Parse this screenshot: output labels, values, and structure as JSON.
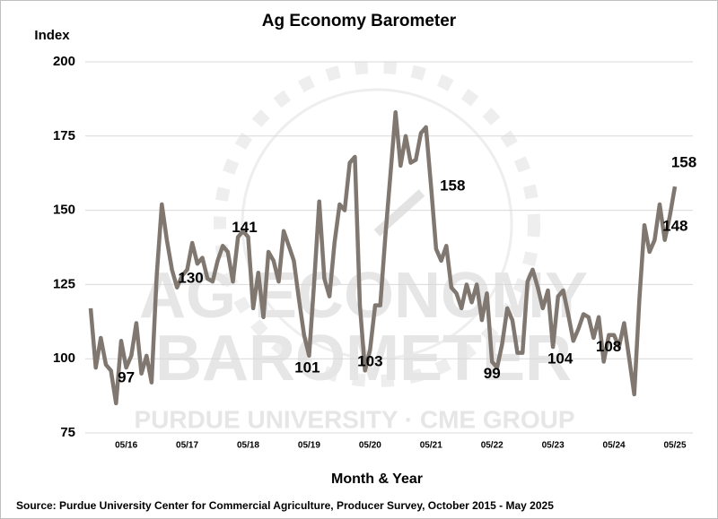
{
  "chart_data": {
    "type": "line",
    "title": "Ag Economy Barometer",
    "y_axis_label": "Index",
    "x_axis_label": "Month & Year",
    "source": "Source: Purdue University Center for Commercial Agriculture, Producer Survey, October 2015 - May 2025",
    "watermark": {
      "line1": "AG ECONOMY",
      "line2": "BAROMETER",
      "line3": "PURDUE UNIVERSITY · CME GROUP"
    },
    "ylim": [
      75,
      200
    ],
    "yticks": [
      75,
      100,
      125,
      150,
      175,
      200
    ],
    "grid": true,
    "categories": [
      null,
      null,
      null,
      null,
      null,
      null,
      null,
      "05/16",
      null,
      null,
      null,
      null,
      null,
      null,
      null,
      null,
      null,
      null,
      null,
      "05/17",
      null,
      null,
      null,
      null,
      null,
      null,
      null,
      null,
      null,
      null,
      null,
      "05/18",
      null,
      null,
      null,
      null,
      null,
      null,
      null,
      null,
      null,
      null,
      null,
      "05/19",
      null,
      null,
      null,
      null,
      null,
      null,
      null,
      null,
      null,
      null,
      null,
      "05/20",
      null,
      null,
      null,
      null,
      null,
      null,
      null,
      null,
      null,
      null,
      null,
      "05/21",
      null,
      null,
      null,
      null,
      null,
      null,
      null,
      null,
      null,
      null,
      null,
      "05/22",
      null,
      null,
      null,
      null,
      null,
      null,
      null,
      null,
      null,
      null,
      null,
      "05/23",
      null,
      null,
      null,
      null,
      null,
      null,
      null,
      null,
      null,
      null,
      null,
      "05/24",
      null,
      null,
      null,
      null,
      null,
      null,
      null,
      null,
      null,
      null,
      null,
      "05/25"
    ],
    "series": [
      {
        "name": "Ag Economy Barometer",
        "color": "#7f7770",
        "values": [
          117,
          97,
          107,
          98,
          96,
          85,
          106,
          97,
          101,
          112,
          95,
          101,
          92,
          128,
          152,
          140,
          130,
          124,
          128,
          130,
          139,
          132,
          134,
          127,
          126,
          133,
          138,
          136,
          126,
          141,
          143,
          141,
          117,
          129,
          114,
          136,
          133,
          126,
          143,
          138,
          133,
          120,
          108,
          101,
          126,
          153,
          127,
          121,
          139,
          152,
          150,
          166,
          168,
          118,
          96,
          103,
          118,
          118,
          141,
          162,
          183,
          165,
          175,
          166,
          167,
          176,
          178,
          158,
          137,
          133,
          138,
          124,
          122,
          117,
          125,
          119,
          125,
          113,
          122,
          99,
          97,
          105,
          117,
          113,
          102,
          102,
          126,
          130,
          124,
          117,
          123,
          104,
          121,
          123,
          115,
          106,
          110,
          115,
          114,
          107,
          114,
          99,
          108,
          108,
          104,
          112,
          100,
          88,
          120,
          145,
          136,
          140,
          152,
          140,
          148,
          158
        ]
      }
    ],
    "labeled_points": [
      7,
      19,
      31,
      43,
      55,
      67,
      79,
      91,
      103,
      114,
      115
    ]
  }
}
